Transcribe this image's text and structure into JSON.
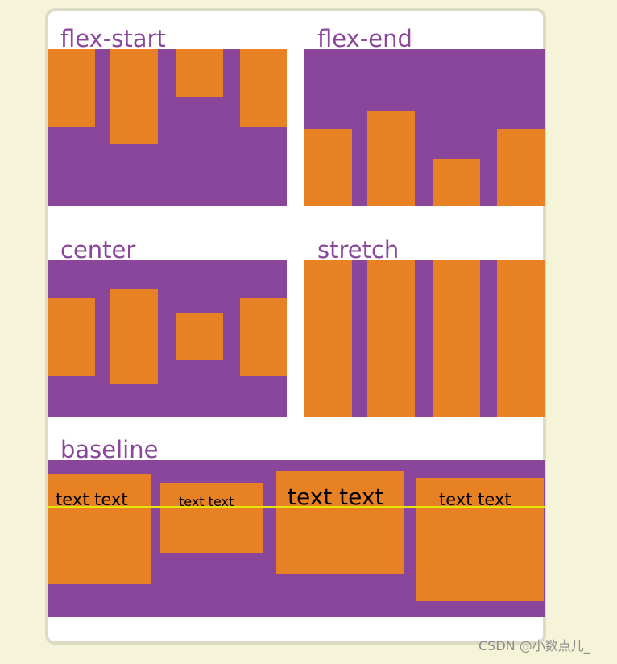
{
  "colors": {
    "background": "#f5f3d8",
    "card": "#ffffff",
    "card_border": "#dcdcc4",
    "container": "#89469a",
    "item": "#e88024",
    "baseline_guide": "#e6e600",
    "title": "#89469a"
  },
  "panels": {
    "flex_start": {
      "title": "flex-start"
    },
    "flex_end": {
      "title": "flex-end"
    },
    "center": {
      "title": "center"
    },
    "stretch": {
      "title": "stretch"
    },
    "baseline": {
      "title": "baseline",
      "items": [
        {
          "label": "text text"
        },
        {
          "label": "text text"
        },
        {
          "label": "text text"
        },
        {
          "label": "text text"
        }
      ]
    }
  },
  "watermark": "CSDN @小数点儿_"
}
